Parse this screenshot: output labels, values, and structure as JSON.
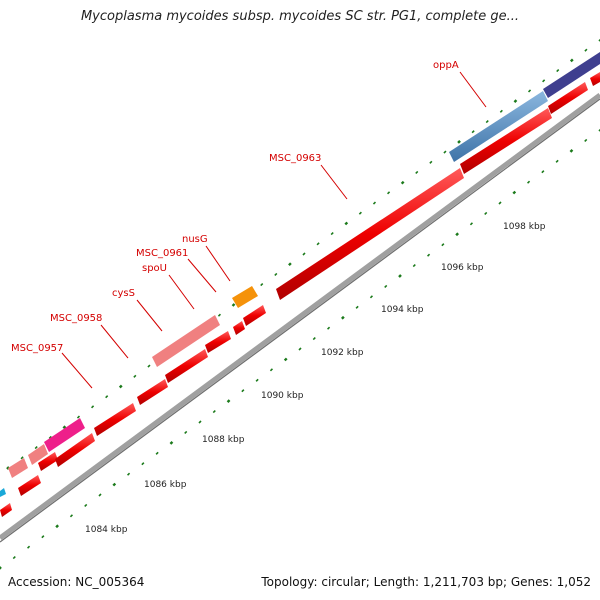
{
  "title": "Mycoplasma mycoides subsp. mycoides SC str. PG1, complete ge...",
  "footer": {
    "accession": "Accession: NC_005364",
    "summary": "Topology: circular; Length: 1,211,703 bp; Genes: 1,052"
  },
  "scale_labels": [
    "1084 kbp",
    "1086 kbp",
    "1088 kbp",
    "1090 kbp",
    "1092 kbp",
    "1094 kbp",
    "1096 kbp",
    "1098 kbp"
  ],
  "gene_labels": [
    "MSC_0957",
    "MSC_0958",
    "cysS",
    "spoU",
    "MSC_0961",
    "nusG",
    "MSC_0963",
    "oppA"
  ],
  "colors": {
    "gene": "#ee0000",
    "gene_light": "#f08080",
    "gene_pink": "#ee1f8a",
    "gene_orange": "#f5920a",
    "gene_blue": "#4a80b4",
    "gene_navy": "#3f3f8f",
    "gene_cyan": "#1aa8d8",
    "backbone": "#9a9a9a",
    "tick": "#1b7a1b",
    "label": "#d40000"
  }
}
